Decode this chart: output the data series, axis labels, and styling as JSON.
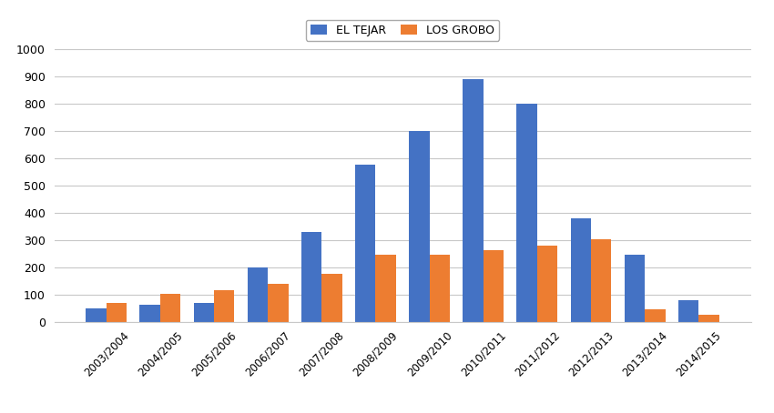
{
  "categories": [
    "2003/2004",
    "2004/2005",
    "2005/2006",
    "2006/2007",
    "2007/2008",
    "2008/2009",
    "2009/2010",
    "2010/2011",
    "2011/2012",
    "2012/2013",
    "2013/2014",
    "2014/2015"
  ],
  "el_tejar": [
    50,
    65,
    72,
    200,
    330,
    578,
    700,
    890,
    800,
    380,
    248,
    82
  ],
  "los_grobo": [
    72,
    103,
    118,
    140,
    178,
    247,
    247,
    265,
    282,
    303,
    48,
    28
  ],
  "el_tejar_color": "#4472C4",
  "los_grobo_color": "#ED7D31",
  "ylim": [
    0,
    1000
  ],
  "yticks": [
    0,
    100,
    200,
    300,
    400,
    500,
    600,
    700,
    800,
    900,
    1000
  ],
  "legend_el_tejar": "EL TEJAR",
  "legend_los_grobo": "LOS GROBO",
  "bar_width": 0.38,
  "background_color": "#ffffff",
  "grid_color": "#c8c8c8",
  "figure_width": 8.5,
  "figure_height": 4.54,
  "dpi": 100
}
